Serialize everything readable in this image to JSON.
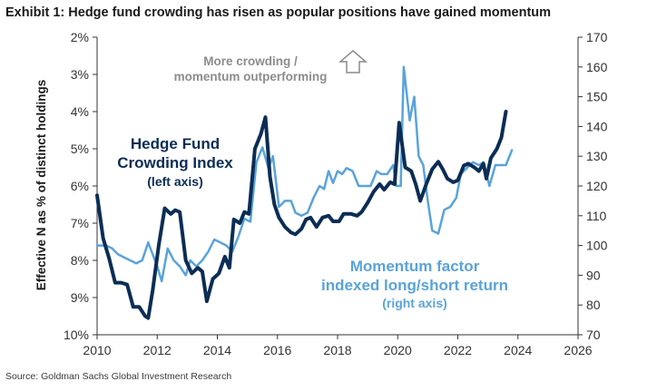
{
  "title": "Exhibit 1: Hedge fund crowding has risen as popular positions have gained momentum",
  "source": "Source: Goldman Sachs Global Investment Research",
  "chart_data": {
    "type": "line",
    "ylabel": "Effective N as % of distinct holdings",
    "x_ticks": [
      "2010",
      "2012",
      "2014",
      "2016",
      "2018",
      "2020",
      "2022",
      "2024",
      "2026"
    ],
    "x_range": [
      2010,
      2026
    ],
    "y_left": {
      "ticks": [
        "2%",
        "3%",
        "4%",
        "5%",
        "6%",
        "7%",
        "8%",
        "9%",
        "10%"
      ],
      "range": [
        2,
        10
      ],
      "inverted": true
    },
    "y_right": {
      "ticks": [
        "70",
        "80",
        "90",
        "100",
        "110",
        "120",
        "130",
        "140",
        "150",
        "160",
        "170"
      ],
      "range": [
        70,
        170
      ]
    },
    "annotations": {
      "top": [
        "More crowding /",
        "momentum outperforming"
      ],
      "hf": [
        "Hedge Fund",
        "Crowding Index",
        "(left axis)"
      ],
      "mom": [
        "Momentum factor",
        "indexed long/short return",
        "(right axis)"
      ]
    },
    "colors": {
      "hedge_fund": "#0b2d55",
      "momentum": "#5aa3d9",
      "annotation_gray": "#8c8c8c",
      "axis": "#333333"
    },
    "series": [
      {
        "name": "Hedge Fund Crowding Index",
        "axis": "left",
        "points": [
          [
            2010.0,
            6.25
          ],
          [
            2010.2,
            7.4
          ],
          [
            2010.4,
            7.95
          ],
          [
            2010.6,
            8.6
          ],
          [
            2010.8,
            8.6
          ],
          [
            2011.0,
            8.65
          ],
          [
            2011.2,
            9.25
          ],
          [
            2011.4,
            9.25
          ],
          [
            2011.6,
            9.5
          ],
          [
            2011.7,
            9.55
          ],
          [
            2011.85,
            8.8
          ],
          [
            2012.05,
            7.6
          ],
          [
            2012.25,
            6.6
          ],
          [
            2012.45,
            6.75
          ],
          [
            2012.6,
            6.65
          ],
          [
            2012.75,
            6.7
          ],
          [
            2012.95,
            8.0
          ],
          [
            2013.15,
            8.35
          ],
          [
            2013.35,
            8.2
          ],
          [
            2013.5,
            8.3
          ],
          [
            2013.65,
            9.1
          ],
          [
            2013.85,
            8.5
          ],
          [
            2014.05,
            8.35
          ],
          [
            2014.25,
            7.9
          ],
          [
            2014.4,
            8.2
          ],
          [
            2014.55,
            6.9
          ],
          [
            2014.75,
            7.0
          ],
          [
            2014.9,
            6.7
          ],
          [
            2015.05,
            6.75
          ],
          [
            2015.25,
            5.0
          ],
          [
            2015.45,
            4.6
          ],
          [
            2015.6,
            4.15
          ],
          [
            2015.75,
            5.75
          ],
          [
            2015.9,
            6.5
          ],
          [
            2016.05,
            6.85
          ],
          [
            2016.25,
            7.1
          ],
          [
            2016.45,
            7.25
          ],
          [
            2016.6,
            7.3
          ],
          [
            2016.8,
            7.15
          ],
          [
            2016.95,
            6.9
          ],
          [
            2017.1,
            6.85
          ],
          [
            2017.3,
            7.1
          ],
          [
            2017.5,
            6.85
          ],
          [
            2017.7,
            6.8
          ],
          [
            2017.85,
            6.95
          ],
          [
            2018.05,
            6.95
          ],
          [
            2018.2,
            6.75
          ],
          [
            2018.45,
            6.75
          ],
          [
            2018.65,
            6.8
          ],
          [
            2018.8,
            6.7
          ],
          [
            2019.0,
            6.45
          ],
          [
            2019.2,
            6.15
          ],
          [
            2019.4,
            5.95
          ],
          [
            2019.55,
            6.1
          ],
          [
            2019.75,
            5.9
          ],
          [
            2019.9,
            5.95
          ],
          [
            2020.05,
            4.3
          ],
          [
            2020.25,
            5.5
          ],
          [
            2020.45,
            5.6
          ],
          [
            2020.6,
            5.95
          ],
          [
            2020.75,
            6.4
          ],
          [
            2020.95,
            5.95
          ],
          [
            2021.15,
            5.55
          ],
          [
            2021.35,
            5.35
          ],
          [
            2021.5,
            5.55
          ],
          [
            2021.65,
            5.8
          ],
          [
            2021.85,
            5.9
          ],
          [
            2022.0,
            5.85
          ],
          [
            2022.2,
            5.45
          ],
          [
            2022.35,
            5.4
          ],
          [
            2022.55,
            5.5
          ],
          [
            2022.7,
            5.6
          ],
          [
            2022.85,
            5.4
          ],
          [
            2022.95,
            5.8
          ],
          [
            2023.1,
            5.25
          ],
          [
            2023.3,
            5.0
          ],
          [
            2023.45,
            4.7
          ],
          [
            2023.6,
            4.0
          ]
        ]
      },
      {
        "name": "Momentum factor indexed long/short return",
        "axis": "right",
        "points": [
          [
            2010.0,
            100
          ],
          [
            2010.3,
            100
          ],
          [
            2010.5,
            99
          ],
          [
            2010.7,
            97
          ],
          [
            2010.9,
            96
          ],
          [
            2011.1,
            95
          ],
          [
            2011.3,
            94
          ],
          [
            2011.5,
            95
          ],
          [
            2011.7,
            101
          ],
          [
            2011.85,
            97
          ],
          [
            2012.0,
            93
          ],
          [
            2012.15,
            88
          ],
          [
            2012.35,
            99
          ],
          [
            2012.55,
            95
          ],
          [
            2012.75,
            93
          ],
          [
            2012.95,
            90
          ],
          [
            2013.1,
            95
          ],
          [
            2013.3,
            93
          ],
          [
            2013.5,
            95
          ],
          [
            2013.7,
            98
          ],
          [
            2013.9,
            102
          ],
          [
            2014.1,
            101
          ],
          [
            2014.3,
            100
          ],
          [
            2014.5,
            98
          ],
          [
            2014.7,
            103
          ],
          [
            2014.9,
            109
          ],
          [
            2015.1,
            108
          ],
          [
            2015.3,
            128
          ],
          [
            2015.5,
            133
          ],
          [
            2015.7,
            126
          ],
          [
            2015.85,
            130
          ],
          [
            2016.05,
            113
          ],
          [
            2016.25,
            115
          ],
          [
            2016.45,
            115
          ],
          [
            2016.6,
            111
          ],
          [
            2016.8,
            110
          ],
          [
            2017.0,
            111
          ],
          [
            2017.2,
            116
          ],
          [
            2017.4,
            120
          ],
          [
            2017.55,
            119
          ],
          [
            2017.7,
            125
          ],
          [
            2017.85,
            121
          ],
          [
            2018.0,
            125
          ],
          [
            2018.15,
            124
          ],
          [
            2018.3,
            126
          ],
          [
            2018.5,
            125
          ],
          [
            2018.7,
            120
          ],
          [
            2018.9,
            120
          ],
          [
            2019.1,
            120
          ],
          [
            2019.3,
            125
          ],
          [
            2019.45,
            124
          ],
          [
            2019.65,
            124
          ],
          [
            2019.85,
            127
          ],
          [
            2019.95,
            120
          ],
          [
            2020.1,
            120
          ],
          [
            2020.2,
            160
          ],
          [
            2020.4,
            142
          ],
          [
            2020.55,
            150
          ],
          [
            2020.7,
            130
          ],
          [
            2020.85,
            127
          ],
          [
            2021.0,
            115
          ],
          [
            2021.15,
            105
          ],
          [
            2021.35,
            104
          ],
          [
            2021.55,
            112
          ],
          [
            2021.75,
            113
          ],
          [
            2021.95,
            116
          ],
          [
            2022.1,
            124
          ],
          [
            2022.3,
            126
          ],
          [
            2022.5,
            128
          ],
          [
            2022.7,
            127
          ],
          [
            2022.85,
            128
          ],
          [
            2023.05,
            120
          ],
          [
            2023.25,
            127
          ],
          [
            2023.4,
            127
          ],
          [
            2023.6,
            127
          ],
          [
            2023.8,
            132
          ]
        ]
      }
    ]
  }
}
